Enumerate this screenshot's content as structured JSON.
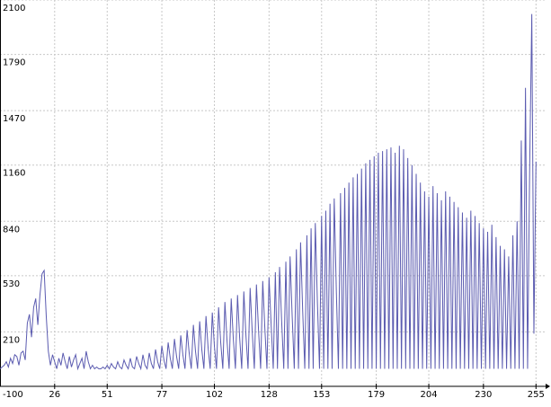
{
  "chart_data": {
    "type": "line",
    "x": [
      0,
      1,
      2,
      3,
      4,
      5,
      6,
      7,
      8,
      9,
      10,
      11,
      12,
      13,
      14,
      15,
      16,
      17,
      18,
      19,
      20,
      21,
      22,
      23,
      24,
      25,
      26,
      27,
      28,
      29,
      30,
      31,
      32,
      33,
      34,
      35,
      36,
      37,
      38,
      39,
      40,
      41,
      42,
      43,
      44,
      45,
      46,
      47,
      48,
      49,
      50,
      51,
      52,
      53,
      54,
      55,
      56,
      57,
      58,
      59,
      60,
      61,
      62,
      63,
      64,
      65,
      66,
      67,
      68,
      69,
      70,
      71,
      72,
      73,
      74,
      75,
      76,
      77,
      78,
      79,
      80,
      81,
      82,
      83,
      84,
      85,
      86,
      87,
      88,
      89,
      90,
      91,
      92,
      93,
      94,
      95,
      96,
      97,
      98,
      99,
      100,
      101,
      102,
      103,
      104,
      105,
      106,
      107,
      108,
      109,
      110,
      111,
      112,
      113,
      114,
      115,
      116,
      117,
      118,
      119,
      120,
      121,
      122,
      123,
      124,
      125,
      126,
      127,
      128,
      129,
      130,
      131,
      132,
      133,
      134,
      135,
      136,
      137,
      138,
      139,
      140,
      141,
      142,
      143,
      144,
      145,
      146,
      147,
      148,
      149,
      150,
      151,
      152,
      153,
      154,
      155,
      156,
      157,
      158,
      159,
      160,
      161,
      162,
      163,
      164,
      165,
      166,
      167,
      168,
      169,
      170,
      171,
      172,
      173,
      174,
      175,
      176,
      177,
      178,
      179,
      180,
      181,
      182,
      183,
      184,
      185,
      186,
      187,
      188,
      189,
      190,
      191,
      192,
      193,
      194,
      195,
      196,
      197,
      198,
      199,
      200,
      201,
      202,
      203,
      204,
      205,
      206,
      207,
      208,
      209,
      210,
      211,
      212,
      213,
      214,
      215,
      216,
      217,
      218,
      219,
      220,
      221,
      222,
      223,
      224,
      225,
      226,
      227,
      228,
      229,
      230,
      231,
      232,
      233,
      234,
      235,
      236,
      237,
      238,
      239,
      240,
      241,
      242,
      243,
      244,
      245,
      246,
      247,
      248,
      249,
      250,
      251,
      252,
      253,
      254,
      255
    ],
    "values": [
      0,
      10,
      20,
      40,
      10,
      60,
      30,
      80,
      70,
      20,
      90,
      100,
      50,
      260,
      310,
      180,
      350,
      400,
      250,
      420,
      540,
      560,
      300,
      100,
      20,
      80,
      40,
      0,
      60,
      20,
      90,
      40,
      0,
      70,
      10,
      50,
      80,
      0,
      30,
      60,
      0,
      100,
      40,
      0,
      20,
      0,
      10,
      0,
      0,
      10,
      0,
      20,
      0,
      30,
      10,
      0,
      40,
      10,
      0,
      50,
      20,
      0,
      60,
      10,
      0,
      70,
      30,
      0,
      80,
      20,
      0,
      90,
      30,
      0,
      110,
      40,
      0,
      130,
      50,
      0,
      150,
      60,
      0,
      170,
      70,
      0,
      190,
      80,
      0,
      220,
      90,
      0,
      250,
      100,
      0,
      270,
      110,
      0,
      300,
      120,
      0,
      320,
      130,
      0,
      350,
      150,
      0,
      380,
      160,
      0,
      400,
      170,
      0,
      420,
      180,
      0,
      440,
      190,
      0,
      460,
      210,
      0,
      480,
      220,
      0,
      500,
      230,
      0,
      520,
      250,
      0,
      550,
      0,
      580,
      270,
      0,
      610,
      0,
      640,
      300,
      0,
      680,
      0,
      720,
      330,
      0,
      760,
      0,
      800,
      0,
      830,
      380,
      0,
      870,
      0,
      900,
      0,
      940,
      0,
      970,
      450,
      0,
      1000,
      0,
      1030,
      0,
      1060,
      0,
      1090,
      0,
      1110,
      0,
      1140,
      0,
      1170,
      0,
      1190,
      0,
      1210,
      0,
      1230,
      0,
      1240,
      0,
      1250,
      0,
      1260,
      0,
      1230,
      0,
      1270,
      0,
      1250,
      0,
      1200,
      0,
      1160,
      0,
      1110,
      0,
      1060,
      0,
      1010,
      0,
      980,
      0,
      1040,
      0,
      1000,
      0,
      960,
      0,
      1010,
      0,
      980,
      0,
      950,
      0,
      920,
      0,
      890,
      0,
      860,
      0,
      900,
      0,
      870,
      0,
      830,
      0,
      800,
      0,
      780,
      0,
      820,
      0,
      750,
      0,
      700,
      0,
      680,
      0,
      640,
      0,
      760,
      0,
      840,
      0,
      1300,
      0,
      1600,
      0,
      1150,
      2020,
      200,
      1180
    ],
    "color": "#5b5bb0",
    "xlim": [
      0,
      260
    ],
    "xticks": [
      26,
      51,
      77,
      102,
      128,
      153,
      179,
      204,
      230,
      255
    ],
    "ylim": [
      -100,
      2100
    ],
    "yticks": [
      -100,
      210,
      530,
      840,
      1160,
      1470,
      1790,
      2100
    ],
    "grid": true
  }
}
